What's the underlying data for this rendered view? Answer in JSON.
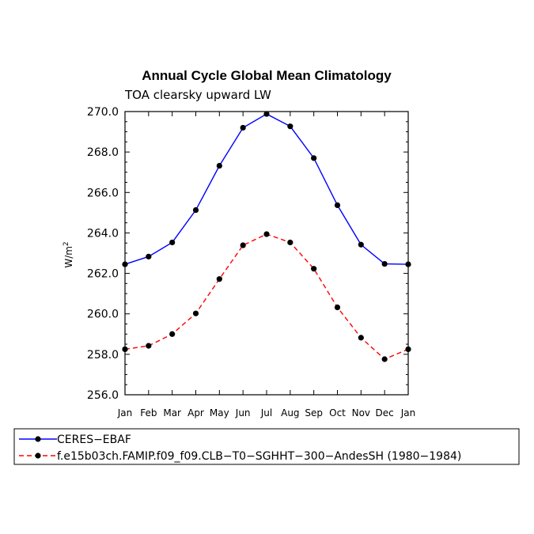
{
  "chart_data": {
    "type": "line",
    "title": "Annual Cycle Global Mean Climatology",
    "subtitle": "TOA clearsky upward LW",
    "ylabel": "W/m",
    "ylabel_sup": "2",
    "categories": [
      "Jan",
      "Feb",
      "Mar",
      "Apr",
      "May",
      "Jun",
      "Jul",
      "Aug",
      "Sep",
      "Oct",
      "Nov",
      "Dec",
      "Jan"
    ],
    "ylim": [
      256.0,
      270.0
    ],
    "yticks": [
      "256.0",
      "258.0",
      "260.0",
      "262.0",
      "264.0",
      "266.0",
      "268.0",
      "270.0"
    ],
    "series": [
      {
        "name": "CERES−EBAF",
        "color": "#0000ff",
        "dash": "solid",
        "values": [
          262.45,
          262.83,
          263.53,
          265.13,
          267.32,
          269.2,
          269.88,
          269.27,
          267.7,
          265.37,
          263.42,
          262.47,
          262.45
        ]
      },
      {
        "name": "f.e15b03ch.FAMIP.f09_f09.CLB−T0−SGHHT−300−AndesSH (1980−1984)",
        "color": "#ff0000",
        "dash": "dashed",
        "values": [
          258.25,
          258.42,
          259.0,
          260.02,
          261.72,
          263.39,
          263.94,
          263.53,
          262.23,
          260.32,
          258.82,
          257.76,
          258.25
        ]
      }
    ],
    "grid": false,
    "legend_position": "bottom-left"
  }
}
